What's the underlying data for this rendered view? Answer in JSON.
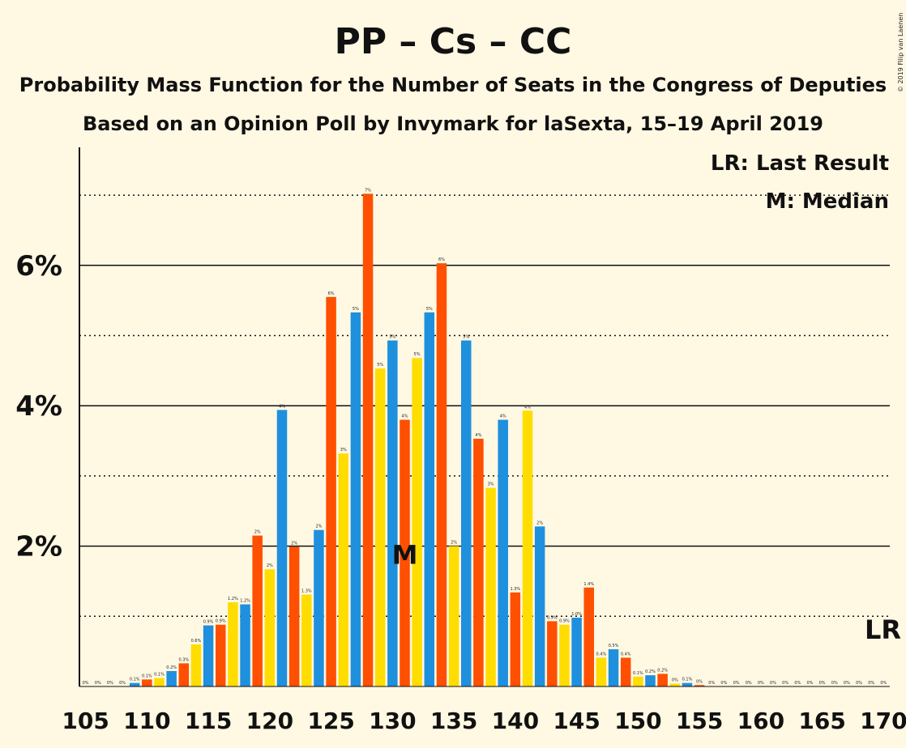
{
  "chart_data": {
    "type": "bar",
    "title": "PP – Cs – CC",
    "subtitle": "Probability Mass Function for the Number of Seats in the Congress of Deputies",
    "subtitle2": "Based on an Opinion Poll by Invymark for laSexta, 15–19 April 2019",
    "copyright": "© 2019 Filip van Laenen",
    "legend": {
      "lr": "LR: Last Result",
      "m": "M: Median"
    },
    "lr_marker": "LR",
    "median_marker": "M",
    "median_seat": 131,
    "last_result_seat": 170,
    "x_min": 105,
    "x_max": 170,
    "ylim": [
      0,
      7.6
    ],
    "y_major_ticks": [
      {
        "value": 2,
        "label": "2%"
      },
      {
        "value": 4,
        "label": "4%"
      },
      {
        "value": 6,
        "label": "6%"
      }
    ],
    "y_minor_ticks": [
      1,
      3,
      5,
      7
    ],
    "x_tick_labels": [
      "105",
      "110",
      "115",
      "120",
      "125",
      "130",
      "135",
      "140",
      "145",
      "150",
      "155",
      "160",
      "165",
      "170"
    ],
    "colors": {
      "pp": "#1E90DD",
      "cs": "#FF4F00",
      "cc": "#FFDD00",
      "bg": "#FFF8E3"
    },
    "series": [
      {
        "name": "PP",
        "values": [
          0.0,
          0.0,
          0.0,
          0.0,
          0.1,
          0.6,
          1.2,
          1.7,
          1.3,
          3.3,
          4.5,
          4.7,
          2.0,
          2.8,
          3.9,
          0.9,
          0.4,
          0.1,
          0.0,
          0.0,
          0.0,
          0.0
        ]
      },
      {
        "name": "Cs",
        "values": [
          0.0,
          0.0,
          0.05,
          0.2,
          0.9,
          1.2,
          3.9,
          2.2,
          5.3,
          4.9,
          5.3,
          4.9,
          3.8,
          2.3,
          1.0,
          0.5,
          0.2,
          0.05,
          0.0,
          0.0,
          0.0,
          0.0
        ]
      },
      {
        "name": "CC",
        "values": [
          0.0,
          0.0,
          0.1,
          0.3,
          0.9,
          2.1,
          2.0,
          5.5,
          7.0,
          3.8,
          6.0,
          3.5,
          1.3,
          0.9,
          1.4,
          0.4,
          0.2,
          0.0,
          0.0,
          0.0,
          0.0,
          0.0
        ]
      }
    ],
    "bar_labels": [
      "0%",
      "0%",
      "0%",
      "0%",
      "0.1%",
      "0.1%",
      "0.1%",
      "0.2%",
      "0.3%",
      "0.6%",
      "0.9%",
      "0.9%",
      "1.2%",
      "1.2%",
      "2%",
      "2%",
      "4%",
      "2%",
      "1.3%",
      "2%",
      "6%",
      "3%",
      "5%",
      "7%",
      "5%",
      "5%",
      "4%",
      "5%",
      "5%",
      "6%",
      "2%",
      "5%",
      "4%",
      "3%",
      "4%",
      "1.3%",
      "4%",
      "2%",
      "0.9%",
      "0.9%",
      "1.0%",
      "1.4%",
      "0.4%",
      "0.5%",
      "0.4%",
      "0.1%",
      "0.2%",
      "0.2%",
      "0%",
      "0.1%",
      "0%",
      "0%",
      "0%",
      "0%",
      "0%",
      "0%",
      "0%",
      "0%",
      "0%",
      "0%",
      "0%",
      "0%",
      "0%",
      "0%",
      "0%",
      "0%"
    ],
    "values": [
      0,
      0,
      0,
      0,
      0.05,
      0.1,
      0.12,
      0.22,
      0.33,
      0.6,
      0.87,
      0.88,
      1.2,
      1.17,
      2.15,
      1.67,
      3.94,
      1.99,
      1.31,
      2.23,
      5.55,
      3.32,
      5.33,
      7.02,
      4.53,
      4.93,
      3.8,
      4.68,
      5.33,
      6.03,
      2.0,
      4.93,
      3.53,
      2.83,
      3.8,
      1.34,
      3.93,
      2.28,
      0.93,
      0.88,
      0.98,
      1.41,
      0.41,
      0.53,
      0.41,
      0.14,
      0.16,
      0.18,
      0.04,
      0.05,
      0.02,
      0,
      0,
      0,
      0,
      0,
      0,
      0,
      0,
      0,
      0,
      0,
      0,
      0,
      0,
      0
    ]
  }
}
